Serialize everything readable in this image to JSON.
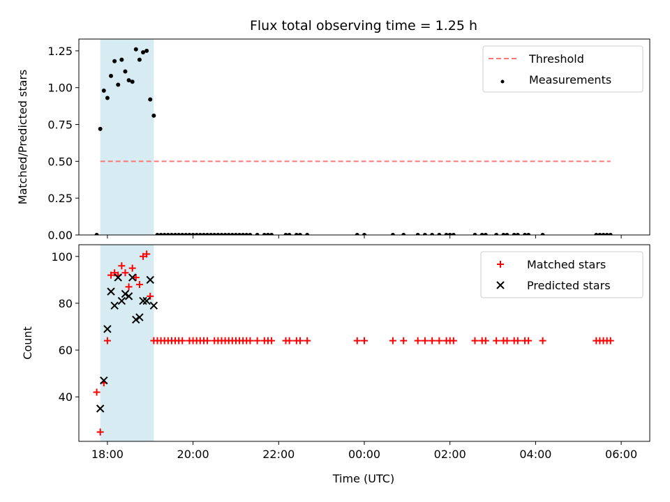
{
  "figure": {
    "title": "Flux total observing time = 1.25 h",
    "xlabel": "Time (UTC)"
  },
  "chart_data": [
    {
      "type": "scatter",
      "panel": "top",
      "xlabel": "",
      "ylabel": "Matched/Predicted stars",
      "x_unit": "hours since 00:00 of observing night start (UTC, 17:42 = 17.70)",
      "xlim": [
        "17:20",
        "06:40"
      ],
      "ylim": [
        0,
        1.33
      ],
      "yticks": [
        "0.00",
        "0.25",
        "0.50",
        "0.75",
        "1.00",
        "1.25"
      ],
      "xticks": [
        "18:00",
        "20:00",
        "22:00",
        "00:00",
        "02:00",
        "04:00",
        "06:00"
      ],
      "highlight_span": {
        "x_start": "17:50",
        "x_end": "19:05",
        "color": "#add8e6"
      },
      "threshold": {
        "name": "Threshold",
        "value": 0.5,
        "x_start": "17:50",
        "x_end": "05:45",
        "color": "#ff7777",
        "style": "dashed"
      },
      "series": [
        {
          "name": "Measurements",
          "color": "#000000",
          "points": [
            [
              "17:45",
              0.0
            ],
            [
              "17:50",
              0.72
            ],
            [
              "17:55",
              0.98
            ],
            [
              "18:00",
              0.93
            ],
            [
              "18:05",
              1.08
            ],
            [
              "18:10",
              1.18
            ],
            [
              "18:15",
              1.02
            ],
            [
              "18:20",
              1.19
            ],
            [
              "18:25",
              1.11
            ],
            [
              "18:30",
              1.05
            ],
            [
              "18:35",
              1.04
            ],
            [
              "18:40",
              1.26
            ],
            [
              "18:45",
              1.19
            ],
            [
              "18:50",
              1.24
            ],
            [
              "18:55",
              1.25
            ],
            [
              "19:00",
              0.92
            ],
            [
              "19:05",
              0.81
            ],
            [
              "19:10",
              0.0
            ],
            [
              "19:15",
              0.0
            ],
            [
              "19:20",
              0.0
            ],
            [
              "19:25",
              0.0
            ],
            [
              "19:30",
              0.0
            ],
            [
              "19:35",
              0.0
            ],
            [
              "19:40",
              0.0
            ],
            [
              "19:45",
              0.0
            ],
            [
              "19:50",
              0.0
            ],
            [
              "19:55",
              0.0
            ],
            [
              "20:00",
              0.0
            ],
            [
              "20:05",
              0.0
            ],
            [
              "20:10",
              0.0
            ],
            [
              "20:15",
              0.0
            ],
            [
              "20:20",
              0.0
            ],
            [
              "20:25",
              0.0
            ],
            [
              "20:30",
              0.0
            ],
            [
              "20:35",
              0.0
            ],
            [
              "20:40",
              0.0
            ],
            [
              "20:45",
              0.0
            ],
            [
              "20:50",
              0.0
            ],
            [
              "20:55",
              0.0
            ],
            [
              "21:00",
              0.0
            ],
            [
              "21:05",
              0.0
            ],
            [
              "21:10",
              0.0
            ],
            [
              "21:15",
              0.0
            ],
            [
              "21:20",
              0.0
            ],
            [
              "21:30",
              0.0
            ],
            [
              "21:40",
              0.0
            ],
            [
              "21:45",
              0.0
            ],
            [
              "21:50",
              0.0
            ],
            [
              "22:10",
              0.0
            ],
            [
              "22:15",
              0.0
            ],
            [
              "22:25",
              0.0
            ],
            [
              "22:30",
              0.0
            ],
            [
              "22:40",
              0.0
            ],
            [
              "23:50",
              0.0
            ],
            [
              "00:00",
              0.0
            ],
            [
              "00:40",
              0.0
            ],
            [
              "00:55",
              0.0
            ],
            [
              "01:15",
              0.0
            ],
            [
              "01:25",
              0.0
            ],
            [
              "01:35",
              0.0
            ],
            [
              "01:45",
              0.0
            ],
            [
              "01:55",
              0.0
            ],
            [
              "02:00",
              0.0
            ],
            [
              "02:05",
              0.0
            ],
            [
              "02:35",
              0.0
            ],
            [
              "02:45",
              0.0
            ],
            [
              "02:50",
              0.0
            ],
            [
              "03:05",
              0.0
            ],
            [
              "03:15",
              0.0
            ],
            [
              "03:20",
              0.0
            ],
            [
              "03:30",
              0.0
            ],
            [
              "03:35",
              0.0
            ],
            [
              "03:45",
              0.0
            ],
            [
              "03:50",
              0.0
            ],
            [
              "04:10",
              0.0
            ],
            [
              "05:25",
              0.0
            ],
            [
              "05:30",
              0.0
            ],
            [
              "05:35",
              0.0
            ],
            [
              "05:40",
              0.0
            ],
            [
              "05:45",
              0.0
            ]
          ]
        }
      ],
      "legend": {
        "placement": "upper right",
        "entries": [
          "Threshold",
          "Measurements"
        ]
      }
    },
    {
      "type": "scatter",
      "panel": "bottom",
      "xlabel": "Time (UTC)",
      "ylabel": "Count",
      "xlim": [
        "17:20",
        "06:40"
      ],
      "ylim": [
        21,
        105
      ],
      "yticks": [
        "40",
        "60",
        "80",
        "100"
      ],
      "xticks": [
        "18:00",
        "20:00",
        "22:00",
        "00:00",
        "02:00",
        "04:00",
        "06:00"
      ],
      "highlight_span": {
        "x_start": "17:50",
        "x_end": "19:05",
        "color": "#add8e6"
      },
      "series": [
        {
          "name": "Matched stars",
          "marker": "+",
          "color": "#ff0000",
          "points": [
            [
              "17:45",
              42
            ],
            [
              "17:50",
              25
            ],
            [
              "17:55",
              46
            ],
            [
              "18:00",
              64
            ],
            [
              "18:05",
              92
            ],
            [
              "18:10",
              93
            ],
            [
              "18:15",
              92
            ],
            [
              "18:20",
              96
            ],
            [
              "18:25",
              93
            ],
            [
              "18:30",
              87
            ],
            [
              "18:35",
              95
            ],
            [
              "18:40",
              91
            ],
            [
              "18:45",
              88
            ],
            [
              "18:50",
              100
            ],
            [
              "18:55",
              101
            ],
            [
              "19:00",
              83
            ],
            [
              "19:05",
              64
            ],
            [
              "19:10",
              64
            ],
            [
              "19:15",
              64
            ],
            [
              "19:20",
              64
            ],
            [
              "19:25",
              64
            ],
            [
              "19:30",
              64
            ],
            [
              "19:35",
              64
            ],
            [
              "19:40",
              64
            ],
            [
              "19:45",
              64
            ],
            [
              "19:55",
              64
            ],
            [
              "20:00",
              64
            ],
            [
              "20:05",
              64
            ],
            [
              "20:10",
              64
            ],
            [
              "20:15",
              64
            ],
            [
              "20:20",
              64
            ],
            [
              "20:30",
              64
            ],
            [
              "20:35",
              64
            ],
            [
              "20:40",
              64
            ],
            [
              "20:45",
              64
            ],
            [
              "20:50",
              64
            ],
            [
              "20:55",
              64
            ],
            [
              "21:00",
              64
            ],
            [
              "21:05",
              64
            ],
            [
              "21:10",
              64
            ],
            [
              "21:15",
              64
            ],
            [
              "21:20",
              64
            ],
            [
              "21:30",
              64
            ],
            [
              "21:40",
              64
            ],
            [
              "21:45",
              64
            ],
            [
              "21:50",
              64
            ],
            [
              "22:10",
              64
            ],
            [
              "22:15",
              64
            ],
            [
              "22:25",
              64
            ],
            [
              "22:30",
              64
            ],
            [
              "22:40",
              64
            ],
            [
              "23:50",
              64
            ],
            [
              "00:00",
              64
            ],
            [
              "00:40",
              64
            ],
            [
              "00:55",
              64
            ],
            [
              "01:15",
              64
            ],
            [
              "01:25",
              64
            ],
            [
              "01:35",
              64
            ],
            [
              "01:45",
              64
            ],
            [
              "01:55",
              64
            ],
            [
              "02:00",
              64
            ],
            [
              "02:05",
              64
            ],
            [
              "02:35",
              64
            ],
            [
              "02:45",
              64
            ],
            [
              "02:50",
              64
            ],
            [
              "03:05",
              64
            ],
            [
              "03:15",
              64
            ],
            [
              "03:20",
              64
            ],
            [
              "03:30",
              64
            ],
            [
              "03:35",
              64
            ],
            [
              "03:45",
              64
            ],
            [
              "03:50",
              64
            ],
            [
              "04:10",
              64
            ],
            [
              "05:25",
              64
            ],
            [
              "05:30",
              64
            ],
            [
              "05:35",
              64
            ],
            [
              "05:40",
              64
            ],
            [
              "05:45",
              64
            ]
          ]
        },
        {
          "name": "Predicted stars",
          "marker": "x",
          "color": "#000000",
          "points": [
            [
              "17:50",
              35
            ],
            [
              "17:55",
              47
            ],
            [
              "18:00",
              69
            ],
            [
              "18:05",
              85
            ],
            [
              "18:10",
              79
            ],
            [
              "18:15",
              91
            ],
            [
              "18:20",
              81
            ],
            [
              "18:25",
              84
            ],
            [
              "18:30",
              83
            ],
            [
              "18:35",
              91
            ],
            [
              "18:40",
              73
            ],
            [
              "18:45",
              74
            ],
            [
              "18:50",
              81
            ],
            [
              "18:55",
              81
            ],
            [
              "19:00",
              90
            ],
            [
              "19:05",
              79
            ]
          ]
        }
      ],
      "legend": {
        "placement": "upper right",
        "entries": [
          "Matched stars",
          "Predicted stars"
        ]
      }
    }
  ]
}
